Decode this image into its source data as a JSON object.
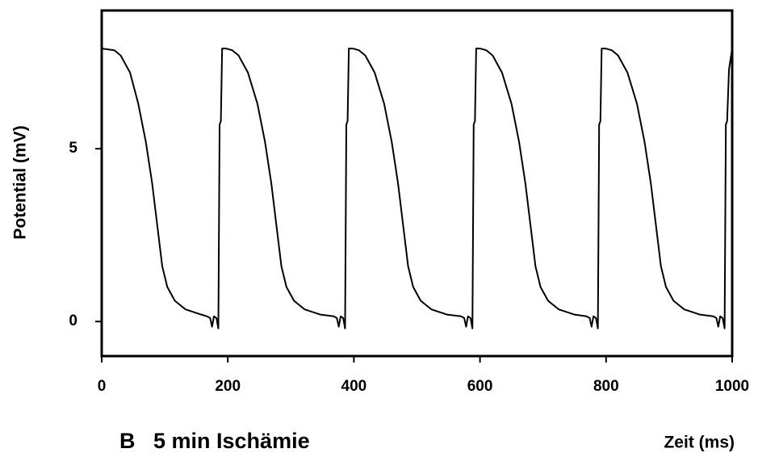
{
  "chart_data": {
    "type": "line",
    "ylabel": "Potential (mV)",
    "xlabel": "Zeit (ms)",
    "caption": "B   5 min Ischämie",
    "color": "#000000",
    "xlim": [
      0,
      1000
    ],
    "xticks": [
      0,
      200,
      400,
      600,
      800,
      1000
    ],
    "ylim": [
      -1,
      9
    ],
    "yticks": [
      0,
      5
    ],
    "x": [
      0,
      20,
      30,
      45,
      58,
      70,
      80,
      88,
      96,
      104,
      116,
      133,
      158,
      167,
      172,
      175,
      178,
      182,
      185,
      187,
      189,
      191,
      197,
      207,
      217,
      232,
      247,
      259,
      269,
      277,
      285,
      293,
      305,
      322,
      347,
      368,
      373,
      376,
      379,
      383,
      386,
      388,
      390,
      392,
      398,
      408,
      418,
      433,
      448,
      460,
      470,
      478,
      486,
      494,
      506,
      523,
      548,
      570,
      575,
      578,
      581,
      585,
      588,
      590,
      592,
      594,
      600,
      610,
      620,
      635,
      650,
      662,
      672,
      680,
      688,
      696,
      708,
      725,
      750,
      769,
      774,
      777,
      780,
      784,
      787,
      789,
      791,
      793,
      799,
      809,
      819,
      834,
      849,
      861,
      871,
      879,
      887,
      895,
      907,
      924,
      949,
      970,
      975,
      978,
      981,
      985,
      988,
      990,
      992,
      995,
      1000
    ],
    "values": [
      7.9,
      7.85,
      7.7,
      7.2,
      6.3,
      5.2,
      4.0,
      2.8,
      1.6,
      1.0,
      0.6,
      0.35,
      0.2,
      0.15,
      0.1,
      -0.15,
      0.15,
      0.1,
      -0.2,
      5.7,
      5.8,
      7.9,
      7.9,
      7.85,
      7.7,
      7.2,
      6.3,
      5.2,
      4.0,
      2.8,
      1.6,
      1.0,
      0.6,
      0.35,
      0.2,
      0.15,
      0.1,
      -0.15,
      0.15,
      0.1,
      -0.2,
      5.7,
      5.8,
      7.9,
      7.9,
      7.85,
      7.7,
      7.2,
      6.3,
      5.2,
      4.0,
      2.8,
      1.6,
      1.0,
      0.6,
      0.35,
      0.2,
      0.15,
      0.1,
      -0.15,
      0.15,
      0.1,
      -0.2,
      5.7,
      5.8,
      7.9,
      7.9,
      7.85,
      7.7,
      7.2,
      6.3,
      5.2,
      4.0,
      2.8,
      1.6,
      1.0,
      0.6,
      0.35,
      0.2,
      0.15,
      0.1,
      -0.15,
      0.15,
      0.1,
      -0.2,
      5.7,
      5.8,
      7.9,
      7.9,
      7.85,
      7.7,
      7.2,
      6.3,
      5.2,
      4.0,
      2.8,
      1.6,
      1.0,
      0.6,
      0.35,
      0.2,
      0.15,
      0.1,
      -0.15,
      0.15,
      0.1,
      -0.2,
      5.7,
      5.8,
      7.3,
      7.9
    ]
  }
}
